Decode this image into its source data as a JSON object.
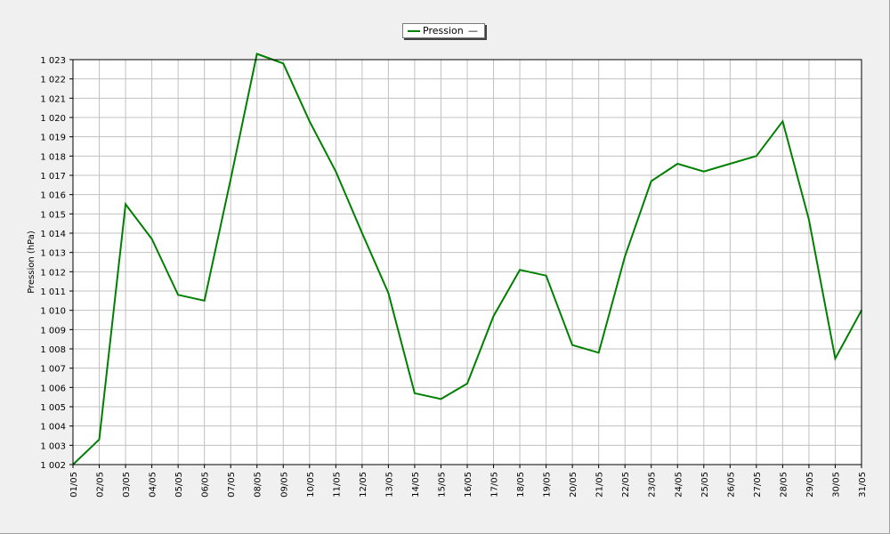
{
  "legend": {
    "entries": [
      {
        "name": "Pression",
        "color": "#008000",
        "marker": "—"
      }
    ]
  },
  "chart_data": {
    "type": "line",
    "title": "",
    "xlabel": "",
    "ylabel": "Pression (hPa)",
    "grid": true,
    "legend_position": "top-center",
    "ylim": [
      1002,
      1023
    ],
    "yticks": [
      "1 002",
      "1 003",
      "1 004",
      "1 005",
      "1 006",
      "1 007",
      "1 008",
      "1 009",
      "1 010",
      "1 011",
      "1 012",
      "1 013",
      "1 014",
      "1 015",
      "1 016",
      "1 017",
      "1 018",
      "1 019",
      "1 020",
      "1 021",
      "1 022",
      "1 023"
    ],
    "categories": [
      "01/05",
      "02/05",
      "03/05",
      "04/05",
      "05/05",
      "06/05",
      "07/05",
      "08/05",
      "09/05",
      "10/05",
      "11/05",
      "12/05",
      "13/05",
      "14/05",
      "15/05",
      "16/05",
      "17/05",
      "18/05",
      "19/05",
      "20/05",
      "21/05",
      "22/05",
      "23/05",
      "24/05",
      "25/05",
      "26/05",
      "27/05",
      "28/05",
      "29/05",
      "30/05",
      "31/05"
    ],
    "series": [
      {
        "name": "Pression",
        "color": "#008000",
        "values": [
          1002.0,
          1003.3,
          1015.5,
          1013.7,
          1010.8,
          1010.5,
          1016.8,
          1023.3,
          1022.8,
          1019.8,
          1017.2,
          1014.0,
          1010.9,
          1005.7,
          1005.4,
          1006.2,
          1009.7,
          1012.1,
          1011.8,
          1008.2,
          1007.8,
          1012.8,
          1016.7,
          1017.6,
          1017.2,
          1017.6,
          1018.0,
          1019.8,
          1014.7,
          1007.5,
          1010.0
        ]
      }
    ]
  }
}
